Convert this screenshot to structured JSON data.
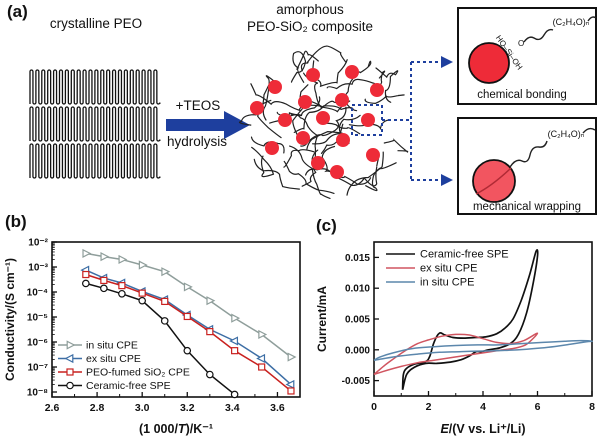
{
  "figure": {
    "panel_a": {
      "label": "(a)",
      "crystalline_title": "crystalline PEO",
      "arrow_top_label": "+TEOS",
      "arrow_bottom_label": "hydrolysis",
      "amorphous_title_line1": "amorphous",
      "amorphous_title_line2": "PEO-SiO₂ composite",
      "insets": {
        "formula": "(C₂H₄O)ₙ",
        "silane_label": "HO–Si–OH",
        "linker_label": "O",
        "chemical_caption": "chemical bonding",
        "mechanical_caption": "mechanical wrapping"
      },
      "colors": {
        "arrow_navy": "#1e3f9e",
        "dashed_navy": "#1e3f9e",
        "particle_red": "#ee2b38",
        "particle_red_light": "#f25560",
        "chain_black": "#222222"
      }
    },
    "panel_b_label": "(b)",
    "panel_c_label": "(c)"
  },
  "chart_data": [
    {
      "type": "line",
      "panel": "b",
      "title": "",
      "ylabel": "Conductivity/(S cm⁻¹)",
      "xlabel_pre": "(1 000/",
      "xlabel_italic": "T",
      "xlabel_post": ")/K⁻¹",
      "xlim": [
        2.6,
        3.7
      ],
      "xticks": [
        2.6,
        2.8,
        3.0,
        3.2,
        3.4,
        3.6
      ],
      "y_log_exponents": [
        -2,
        -3,
        -4,
        -5,
        -6,
        -7,
        -8
      ],
      "legend_position": "bottom-left",
      "x": [
        2.75,
        2.83,
        2.91,
        3.0,
        3.1,
        3.2,
        3.3,
        3.41,
        3.53,
        3.66
      ],
      "series": [
        {
          "name": "in situ CPE",
          "color": "#8f9e9b",
          "marker": "triangle-right",
          "values": [
            0.0035,
            0.0026,
            0.002,
            0.0012,
            0.00065,
            0.00016,
            4.5e-05,
            9e-06,
            2e-06,
            2.5e-07
          ]
        },
        {
          "name": "ex situ CPE",
          "color": "#3d6ea5",
          "marker": "triangle-left",
          "values": [
            0.00075,
            0.00036,
            0.00023,
            0.000105,
            5e-05,
            1.2e-05,
            3.2e-06,
            1.1e-06,
            2.2e-07,
            2e-08
          ]
        },
        {
          "name": "PEO-fumed SiO₂ CPE",
          "color": "#c9211f",
          "marker": "square",
          "values": [
            0.0005,
            0.00029,
            0.00018,
            9e-05,
            4.2e-05,
            1.05e-05,
            2.6e-06,
            4.5e-07,
            1e-07,
            1.1e-08
          ]
        },
        {
          "name": "Ceramic-free SPE",
          "color": "#111111",
          "marker": "circle",
          "x_override": [
            2.75,
            2.83,
            2.91,
            3.0,
            3.1,
            3.2,
            3.3,
            3.41
          ],
          "values": [
            0.00022,
            0.00014,
            8.5e-05,
            4.5e-05,
            7e-06,
            4.5e-07,
            5e-08,
            8e-09
          ]
        }
      ]
    },
    {
      "type": "line",
      "panel": "c",
      "title": "",
      "ylabel": "Current/mA",
      "xlabel_italic": "E",
      "xlabel_post": "/(V vs. Li⁺/Li)",
      "xlim": [
        0,
        8
      ],
      "ylim": [
        -0.0075,
        0.0175
      ],
      "xticks": [
        0,
        2,
        4,
        6,
        8
      ],
      "yticks": [
        {
          "v": -0.005,
          "label": "-0.005"
        },
        {
          "v": 0.0,
          "label": "0.000"
        },
        {
          "v": 0.005,
          "label": "0.005"
        },
        {
          "v": 0.01,
          "label": "0.010"
        },
        {
          "v": 0.015,
          "label": "0.015"
        }
      ],
      "legend_position": "top-left",
      "series": [
        {
          "name": "Ceramic-free SPE",
          "color": "#111111",
          "points": [
            [
              1.05,
              -0.0065
            ],
            [
              1.08,
              -0.004
            ],
            [
              1.2,
              -0.003
            ],
            [
              1.5,
              -0.0023
            ],
            [
              1.9,
              -0.0019
            ],
            [
              2.05,
              -0.001
            ],
            [
              2.2,
              0.0012
            ],
            [
              2.4,
              0.0027
            ],
            [
              2.6,
              0.0024
            ],
            [
              2.9,
              0.002
            ],
            [
              3.3,
              0.0019
            ],
            [
              3.7,
              0.002
            ],
            [
              4.1,
              0.0021
            ],
            [
              4.5,
              0.0026
            ],
            [
              4.8,
              0.0035
            ],
            [
              5.1,
              0.005
            ],
            [
              5.4,
              0.008
            ],
            [
              5.7,
              0.012
            ],
            [
              5.95,
              0.016
            ],
            [
              6.0,
              0.0152
            ],
            [
              5.85,
              0.011
            ],
            [
              5.6,
              0.006
            ],
            [
              5.3,
              0.0025
            ],
            [
              5.0,
              0.001
            ],
            [
              4.6,
              0.0003
            ],
            [
              4.2,
              0.0
            ],
            [
              3.95,
              -0.0003
            ],
            [
              3.75,
              -0.0003
            ],
            [
              3.5,
              -0.001
            ],
            [
              3.2,
              -0.0016
            ],
            [
              2.8,
              -0.002
            ],
            [
              2.3,
              -0.0022
            ],
            [
              1.9,
              -0.0022
            ],
            [
              1.5,
              -0.0028
            ],
            [
              1.2,
              -0.004
            ],
            [
              1.05,
              -0.0065
            ]
          ]
        },
        {
          "name": "ex situ CPE",
          "color": "#d05560",
          "points": [
            [
              0,
              -0.004
            ],
            [
              0.4,
              -0.0025
            ],
            [
              0.8,
              -0.0012
            ],
            [
              1.2,
              0.0
            ],
            [
              1.6,
              0.001
            ],
            [
              2.0,
              0.0016
            ],
            [
              2.5,
              0.0022
            ],
            [
              3.0,
              0.0025
            ],
            [
              3.5,
              0.0024
            ],
            [
              4.0,
              0.0018
            ],
            [
              4.5,
              0.0012
            ],
            [
              5.0,
              0.001
            ],
            [
              5.5,
              0.0015
            ],
            [
              6.0,
              0.0027
            ],
            [
              5.6,
              0.0009
            ],
            [
              5.2,
              0.0003
            ],
            [
              4.6,
              -0.0001
            ],
            [
              4.0,
              -0.0005
            ],
            [
              3.4,
              -0.0009
            ],
            [
              2.8,
              -0.0013
            ],
            [
              2.2,
              -0.0017
            ],
            [
              1.6,
              -0.0021
            ],
            [
              1.0,
              -0.0027
            ],
            [
              0.5,
              -0.0033
            ],
            [
              0,
              -0.004
            ]
          ]
        },
        {
          "name": "in situ CPE",
          "color": "#5c87ac",
          "points": [
            [
              0,
              -0.0017
            ],
            [
              0.8,
              -0.0011
            ],
            [
              1.6,
              -0.0007
            ],
            [
              2.4,
              -0.0004
            ],
            [
              3.2,
              -0.0003
            ],
            [
              4.0,
              -0.0002
            ],
            [
              4.8,
              -0.0001
            ],
            [
              5.6,
              0.0001
            ],
            [
              6.4,
              0.0004
            ],
            [
              7.2,
              0.0009
            ],
            [
              7.8,
              0.0013
            ],
            [
              8.0,
              0.0014
            ],
            [
              7.6,
              0.0015
            ],
            [
              7.0,
              0.0014
            ],
            [
              6.2,
              0.0012
            ],
            [
              5.4,
              0.001
            ],
            [
              4.6,
              0.0008
            ],
            [
              3.8,
              0.0008
            ],
            [
              3.0,
              0.0007
            ],
            [
              2.2,
              0.0005
            ],
            [
              1.4,
              0.0002
            ],
            [
              0.7,
              -0.0005
            ],
            [
              0.2,
              -0.0012
            ],
            [
              0,
              -0.0017
            ]
          ]
        }
      ]
    }
  ]
}
